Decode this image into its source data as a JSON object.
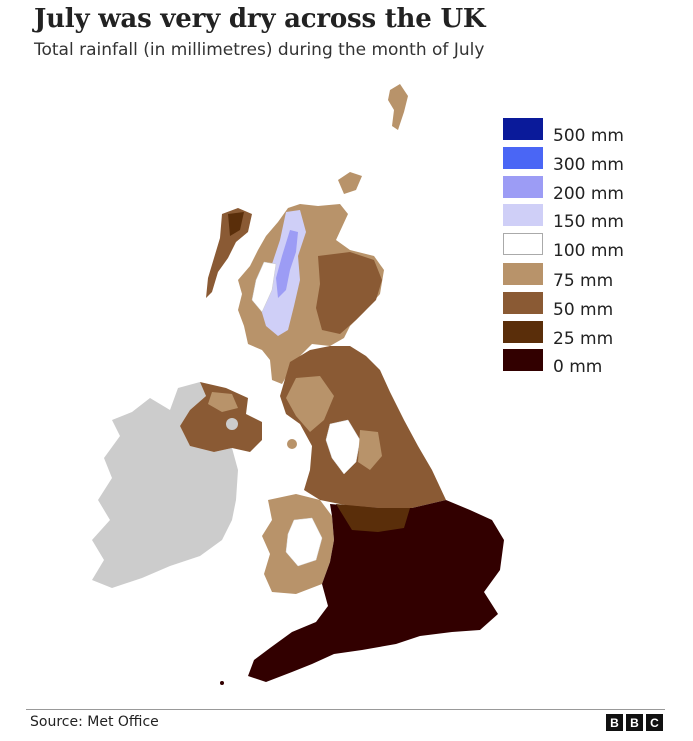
{
  "title": "July was very dry across the UK",
  "subtitle": "Total rainfall (in millimetres) during the month of July",
  "legend": [
    {
      "label": "500 mm",
      "color": "#0a1a9a"
    },
    {
      "label": "300 mm",
      "color": "#4a66f5"
    },
    {
      "label": "200 mm",
      "color": "#9c9cf5"
    },
    {
      "label": "150 mm",
      "color": "#cfcff7"
    },
    {
      "label": "100 mm",
      "color": "#ffffff"
    },
    {
      "label": "75 mm",
      "color": "#b8936a"
    },
    {
      "label": "50 mm",
      "color": "#8a5a34"
    },
    {
      "label": "25 mm",
      "color": "#5a2e0a"
    },
    {
      "label": "0 mm",
      "color": "#320000"
    }
  ],
  "colors": {
    "ireland": "#cccccc",
    "border": "#555555"
  },
  "source": "Source: Met Office",
  "logo": [
    "B",
    "B",
    "C"
  ]
}
